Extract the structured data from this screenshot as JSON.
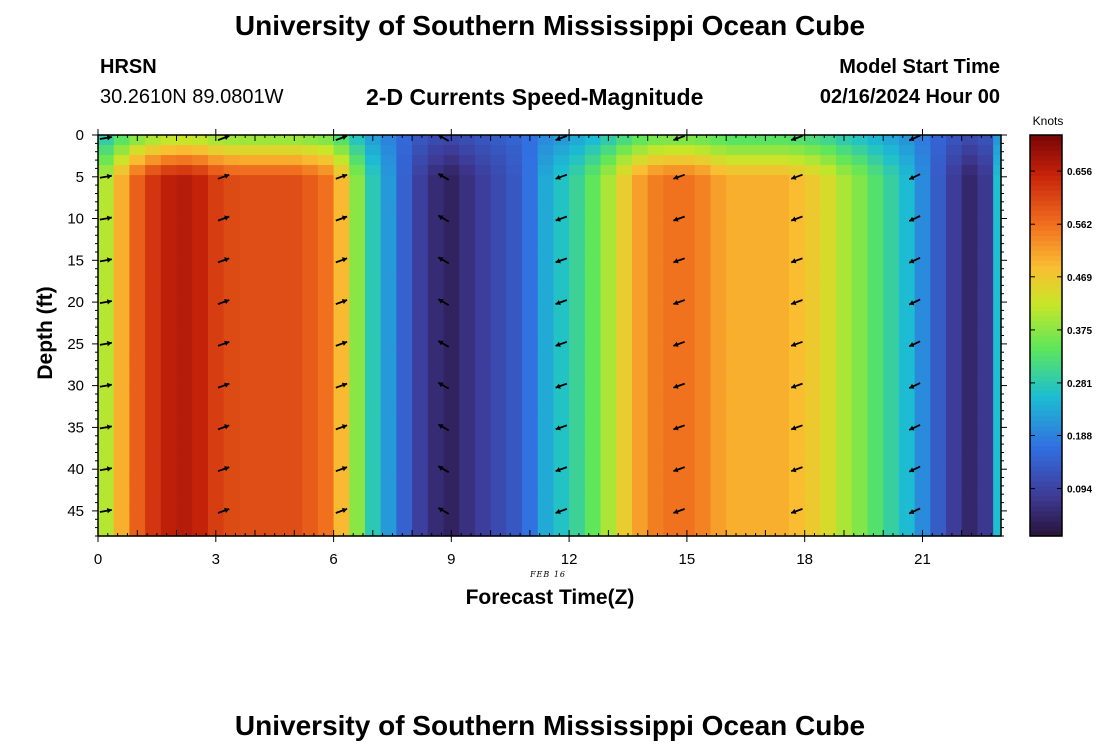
{
  "header": {
    "title": "University of Southern Mississippi Ocean Cube",
    "station": "HRSN",
    "coords": "30.2610N  89.0801W",
    "subtitle": "2-D Currents Speed-Magnitude",
    "model_label": "Model Start Time",
    "model_time": "02/16/2024 Hour 00",
    "footer_title": "University of Southern Mississippi Ocean Cube"
  },
  "chart_data": {
    "type": "heatmap",
    "title": "2-D Currents Speed-Magnitude",
    "xlabel": "Forecast Time(Z)",
    "ylabel": "Depth (ft)",
    "date_label": "FEB 16",
    "x_ticks": [
      0,
      3,
      6,
      9,
      12,
      15,
      18,
      21
    ],
    "x_tick_labels": [
      "0",
      "3",
      "6",
      "9",
      "12",
      "15",
      "18",
      "21"
    ],
    "y_ticks": [
      0,
      5,
      10,
      15,
      20,
      25,
      30,
      35,
      40,
      45
    ],
    "y_tick_labels": [
      "0",
      "5",
      "10",
      "15",
      "20",
      "25",
      "30",
      "35",
      "40",
      "45"
    ],
    "xlim": [
      0,
      23
    ],
    "ylim": [
      0,
      48
    ],
    "colorbar": {
      "unit": "Knots",
      "tick_values": [
        0.656,
        0.562,
        0.469,
        0.375,
        0.281,
        0.188,
        0.094
      ],
      "tick_labels": [
        "0.656",
        "0.562",
        "0.469",
        "0.375",
        "0.281",
        "0.188",
        "0.094"
      ],
      "range": [
        0.01,
        0.72
      ]
    },
    "speed_profile_hours": [
      0,
      0.5,
      1,
      1.5,
      2,
      2.5,
      3,
      3.5,
      4,
      4.5,
      5,
      5.5,
      6,
      6.5,
      7,
      7.5,
      8,
      8.5,
      9,
      9.5,
      10,
      10.5,
      11,
      11.5,
      12,
      12.5,
      13,
      13.5,
      14,
      14.5,
      15,
      15.5,
      16,
      16.5,
      17,
      17.5,
      18,
      18.5,
      19,
      19.5,
      20,
      20.5,
      21,
      21.5,
      22,
      22.5,
      23
    ],
    "speed_profile_knots": [
      0.36,
      0.48,
      0.58,
      0.64,
      0.67,
      0.66,
      0.62,
      0.6,
      0.6,
      0.6,
      0.6,
      0.58,
      0.55,
      0.4,
      0.28,
      0.2,
      0.11,
      0.06,
      0.04,
      0.07,
      0.1,
      0.12,
      0.17,
      0.25,
      0.28,
      0.33,
      0.4,
      0.48,
      0.54,
      0.56,
      0.56,
      0.54,
      0.5,
      0.5,
      0.5,
      0.5,
      0.48,
      0.45,
      0.4,
      0.36,
      0.31,
      0.27,
      0.2,
      0.12,
      0.06,
      0.03,
      0.26
    ],
    "arrow_hours": [
      0.2,
      3.2,
      6.2,
      8.8,
      11.8,
      14.8,
      17.8,
      20.8
    ],
    "arrow_depths": [
      0,
      5,
      10,
      15,
      20,
      25,
      30,
      35,
      40,
      45
    ],
    "arrow_directions_deg": [
      10,
      20,
      20,
      150,
      200,
      200,
      200,
      205
    ]
  }
}
